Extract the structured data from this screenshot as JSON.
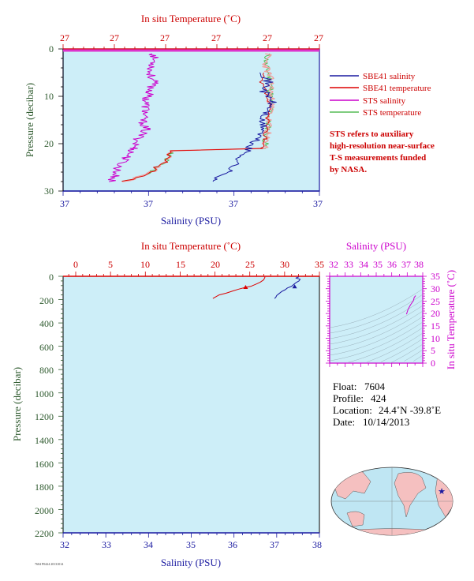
{
  "top_chart": {
    "top_axis_title": "In situ Temperature (˚C)",
    "bottom_axis_title": "Salinity (PSU)",
    "left_axis_title": "Pressure (decibar)",
    "top_ticks": [
      "27",
      "27",
      "27",
      "27",
      "27",
      "27"
    ],
    "bottom_ticks": [
      "37",
      "37",
      "37",
      "37"
    ],
    "left_ticks": [
      "0",
      "10",
      "20",
      "30"
    ]
  },
  "legend": [
    {
      "label": "SBE41 salinity",
      "color": "#1a1aa0"
    },
    {
      "label": "SBE41 temperature",
      "color": "#dd0000"
    },
    {
      "label": "STS salinity",
      "color": "#cc00cc"
    },
    {
      "label": "STS temperature",
      "color": "#55bb55"
    }
  ],
  "note_lines": [
    "STS refers to auxiliary",
    "high-resolution near-surface",
    "T-S measurements funded",
    "by NASA."
  ],
  "bottom_chart": {
    "top_axis_title": "In situ Temperature (˚C)",
    "bottom_axis_title": "Salinity (PSU)",
    "left_axis_title": "Pressure (decibar)",
    "top_ticks": [
      "0",
      "5",
      "10",
      "15",
      "20",
      "25",
      "30",
      "35"
    ],
    "bottom_ticks": [
      "32",
      "33",
      "34",
      "35",
      "36",
      "37",
      "38"
    ],
    "left_ticks": [
      "0",
      "200",
      "400",
      "600",
      "800",
      "1000",
      "1200",
      "1400",
      "1600",
      "1800",
      "2000",
      "2200"
    ]
  },
  "ts_chart": {
    "top_axis_title": "Salinity (PSU)",
    "right_axis_title": "In situ Temperature (˚C)",
    "top_ticks": [
      "32",
      "33",
      "34",
      "35",
      "36",
      "37",
      "38"
    ],
    "right_ticks": [
      "0",
      "5",
      "10",
      "15",
      "20",
      "25",
      "30",
      "35"
    ]
  },
  "info": {
    "float_label": "Float:",
    "float_value": "7604",
    "profile_label": "Profile:",
    "profile_value": "424",
    "location_label": "Location:",
    "location_value": "24.4˚N  -39.8˚E",
    "date_label": "Date:",
    "date_value": "10/14/2013"
  },
  "footer_tiny": "7604 P0424 20131014",
  "colors": {
    "plot_bg": "#cdeef8",
    "sbe41_salinity": "#1a1aa0",
    "sbe41_temperature": "#dd0000",
    "sts_salinity": "#cc00cc",
    "sts_temperature": "#55bb55",
    "sts_temperature_light": "#f0a0a0"
  },
  "chart_data": [
    {
      "type": "line",
      "name": "near-surface profile",
      "title": "",
      "xlabel": "Salinity (PSU)",
      "x2label": "In situ Temperature (˚C)",
      "ylabel": "Pressure (decibar)",
      "ylim": [
        30,
        0
      ],
      "series": [
        {
          "name": "SBE41 salinity",
          "axis": "salinity",
          "points": [
            [
              37.41,
              5
            ],
            [
              37.42,
              7
            ],
            [
              37.41,
              9
            ],
            [
              37.43,
              11
            ],
            [
              37.42,
              13
            ],
            [
              37.4,
              15
            ],
            [
              37.41,
              17
            ],
            [
              37.39,
              19
            ],
            [
              37.37,
              21
            ],
            [
              37.35,
              23
            ],
            [
              37.33,
              25
            ],
            [
              37.3,
              27
            ],
            [
              37.28,
              28
            ]
          ]
        },
        {
          "name": "SBE41 temperature",
          "axis": "temperature",
          "points": [
            [
              27.14,
              5
            ],
            [
              27.13,
              7
            ],
            [
              27.15,
              9
            ],
            [
              27.16,
              11
            ],
            [
              27.16,
              13
            ],
            [
              27.16,
              15
            ],
            [
              27.15,
              17
            ],
            [
              27.15,
              19
            ],
            [
              27.14,
              21
            ],
            [
              26.8,
              21.5
            ],
            [
              26.78,
              24
            ],
            [
              26.74,
              25
            ],
            [
              26.73,
              26
            ],
            [
              26.66,
              27.5
            ],
            [
              26.62,
              28
            ]
          ]
        },
        {
          "name": "STS salinity",
          "axis": "salinity",
          "points": [
            [
              37.13,
              1
            ],
            [
              37.13,
              3
            ],
            [
              37.12,
              5
            ],
            [
              37.13,
              7
            ],
            [
              37.12,
              9
            ],
            [
              37.11,
              11
            ],
            [
              37.11,
              13
            ],
            [
              37.1,
              15
            ],
            [
              37.11,
              17
            ],
            [
              37.09,
              19
            ],
            [
              37.08,
              21
            ],
            [
              37.06,
              23
            ],
            [
              37.04,
              25
            ],
            [
              37.03,
              27
            ],
            [
              37.02,
              28
            ]
          ]
        },
        {
          "name": "STS temperature",
          "axis": "temperature",
          "points": [
            [
              27.16,
              1
            ],
            [
              27.15,
              3
            ],
            [
              27.16,
              5
            ],
            [
              27.17,
              7
            ],
            [
              27.17,
              9
            ],
            [
              27.17,
              11
            ],
            [
              27.17,
              13
            ],
            [
              27.16,
              15
            ],
            [
              27.16,
              17
            ],
            [
              27.15,
              19
            ],
            [
              27.15,
              21
            ],
            [
              26.8,
              21.5
            ],
            [
              26.78,
              24
            ],
            [
              26.74,
              25
            ],
            [
              26.73,
              26
            ],
            [
              26.66,
              27.5
            ],
            [
              26.62,
              28
            ]
          ]
        }
      ]
    },
    {
      "type": "line",
      "name": "full-depth profile",
      "title": "",
      "xlabel": "Salinity (PSU)",
      "x2label": "In situ Temperature (˚C)",
      "ylabel": "Pressure (decibar)",
      "xlim": [
        32,
        38
      ],
      "x2lim": [
        0,
        35
      ],
      "ylim": [
        2200,
        0
      ],
      "series": [
        {
          "name": "Salinity",
          "axis": "salinity",
          "points": [
            [
              37.52,
              5
            ],
            [
              37.45,
              15
            ],
            [
              37.55,
              25
            ],
            [
              37.52,
              40
            ],
            [
              37.45,
              55
            ],
            [
              37.4,
              70
            ],
            [
              37.35,
              85
            ],
            [
              37.25,
              100
            ],
            [
              37.2,
              115
            ],
            [
              37.12,
              130
            ],
            [
              37.05,
              150
            ],
            [
              37.0,
              165
            ],
            [
              36.98,
              180
            ],
            [
              36.95,
              190
            ]
          ]
        },
        {
          "name": "Temperature",
          "axis": "temperature",
          "points": [
            [
              27.2,
              5
            ],
            [
              27.0,
              30
            ],
            [
              26.5,
              50
            ],
            [
              26.0,
              65
            ],
            [
              25.2,
              85
            ],
            [
              24.4,
              95
            ],
            [
              23.4,
              110
            ],
            [
              22.6,
              125
            ],
            [
              21.6,
              145
            ],
            [
              20.6,
              160
            ],
            [
              20.0,
              180
            ],
            [
              19.7,
              190
            ]
          ]
        }
      ],
      "markers": [
        {
          "axis": "salinity",
          "x": 37.42,
          "y": 90
        },
        {
          "axis": "temperature",
          "x": 24.4,
          "y": 95
        }
      ]
    },
    {
      "type": "line",
      "name": "T-S diagram",
      "title": "",
      "xlabel": "Salinity (PSU)",
      "ylabel": "In situ Temperature (˚C)",
      "xlim": [
        32,
        38
      ],
      "ylim": [
        0,
        35
      ],
      "series": [
        {
          "name": "T-S",
          "points": [
            [
              36.95,
              19.7
            ],
            [
              37.05,
              21.6
            ],
            [
              37.2,
              23.4
            ],
            [
              37.4,
              25.2
            ],
            [
              37.45,
              26.5
            ],
            [
              37.55,
              27.2
            ]
          ]
        }
      ]
    }
  ],
  "map": {
    "marker_lat": 24.4,
    "marker_lon": -39.8
  }
}
